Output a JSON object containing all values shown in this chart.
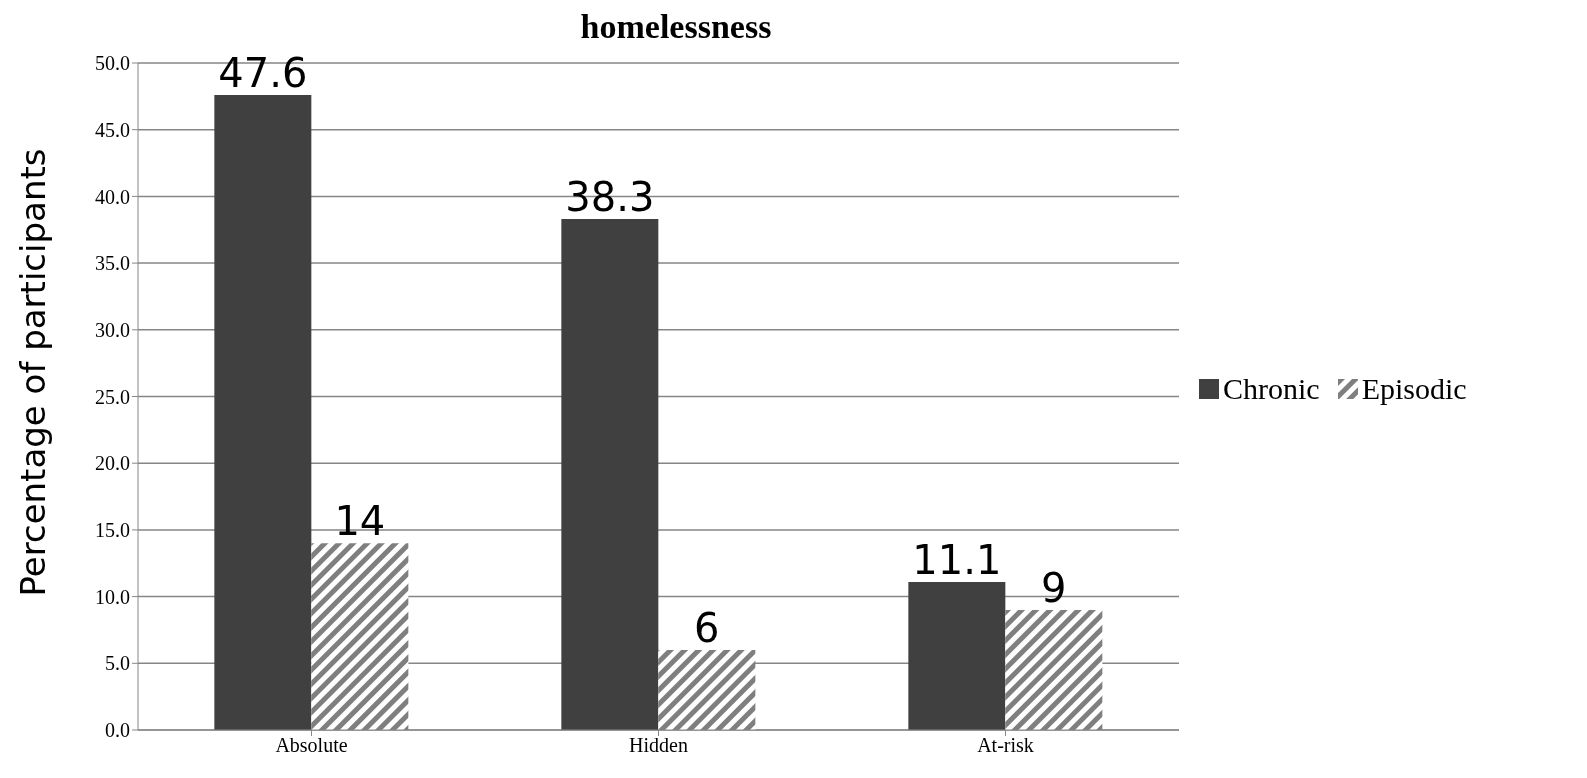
{
  "chart_data": {
    "type": "bar",
    "title": "homelessness",
    "ylabel": "Percentage of participants",
    "categories": [
      "Absolute",
      "Hidden",
      "At-risk"
    ],
    "series": [
      {
        "name": "Chronic",
        "color": "#404040",
        "values": [
          47.6,
          38.3,
          11.1
        ]
      },
      {
        "name": "Episodic",
        "color": "#7f7f7f",
        "values": [
          14,
          6,
          9
        ]
      }
    ],
    "ylim": [
      0,
      50
    ],
    "yticks": [
      {
        "value": 0,
        "label": "0.0"
      },
      {
        "value": 5,
        "label": "5.0"
      },
      {
        "value": 10,
        "label": "10.0"
      },
      {
        "value": 15,
        "label": "15.0"
      },
      {
        "value": 20,
        "label": "20.0"
      },
      {
        "value": 25,
        "label": "25.0"
      },
      {
        "value": 30,
        "label": "30.0"
      },
      {
        "value": 35,
        "label": "35.0"
      },
      {
        "value": 40,
        "label": "40.0"
      },
      {
        "value": 45,
        "label": "45.0"
      },
      {
        "value": 50,
        "label": "50.0"
      }
    ],
    "grid": "y",
    "legend": "right",
    "data_labels": true
  }
}
